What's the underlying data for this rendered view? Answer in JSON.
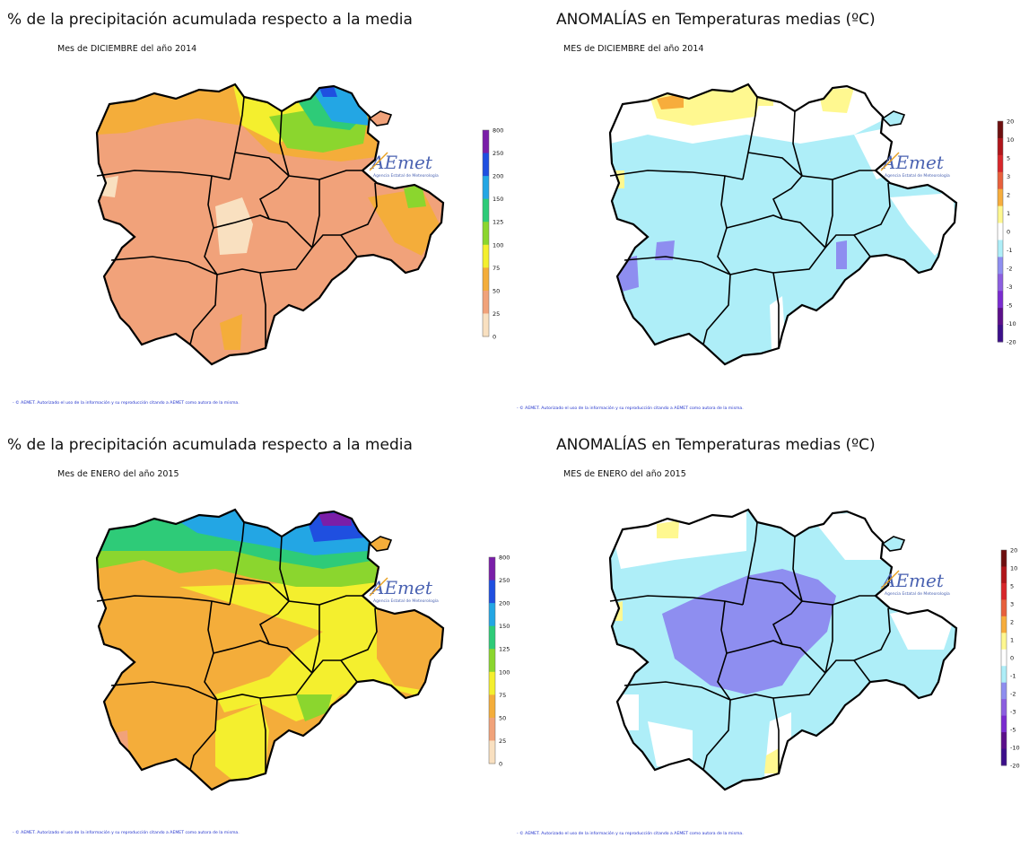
{
  "panels": [
    {
      "title": "% de la precipitación acumulada respecto a la media",
      "subtitle": "Mes de DICIEMBRE del año 2014",
      "footnote": "- © AEMET. Autorizado el uso de la información y su reproducción citando a AEMET como autora de la misma.",
      "logo": {
        "text": "AEmet",
        "caption": "Agencia Estatal de Meteorología"
      },
      "colorbar_ticks": [
        "800",
        "250",
        "200",
        "150",
        "125",
        "100",
        "75",
        "50",
        "25",
        "0"
      ]
    },
    {
      "title": "ANOMALÍAS en Temperaturas medias (ºC)",
      "subtitle": "MES de DICIEMBRE del año 2014",
      "footnote": "- © AEMET. Autorizado el uso de la información y su reproducción citando a AEMET como autora de la misma.",
      "logo": {
        "text": "AEmet",
        "caption": "Agencia Estatal de Meteorología"
      },
      "colorbar_ticks": [
        "20",
        "10",
        "5",
        "3",
        "2",
        "1",
        "0",
        "-1",
        "-2",
        "-3",
        "-5",
        "-10",
        "-20"
      ]
    },
    {
      "title": "% de la precipitación acumulada respecto a la media",
      "subtitle": "Mes de ENERO del año 2015",
      "footnote": "- © AEMET. Autorizado el uso de la información y su reproducción citando a AEMET como autora de la misma.",
      "logo": {
        "text": "AEmet",
        "caption": "Agencia Estatal de Meteorología"
      },
      "colorbar_ticks": [
        "800",
        "250",
        "200",
        "150",
        "125",
        "100",
        "75",
        "50",
        "25",
        "0"
      ]
    },
    {
      "title": "ANOMALÍAS en Temperaturas medias (ºC)",
      "subtitle": "MES de ENERO del año 2015",
      "footnote": "- © AEMET. Autorizado el uso de la información y su reproducción citando a AEMET como autora de la misma.",
      "logo": {
        "text": "AEmet",
        "caption": "Agencia Estatal de Meteorología"
      },
      "colorbar_ticks": [
        "20",
        "10",
        "5",
        "3",
        "2",
        "1",
        "0",
        "-1",
        "-2",
        "-3",
        "-5",
        "-10",
        "-20"
      ]
    }
  ],
  "colors": {
    "precip_scale": [
      "#f9e0c0",
      "#f1a27a",
      "#f4ad3a",
      "#f4ef2e",
      "#8bd62e",
      "#2ecb78",
      "#23a6e4",
      "#1f4fe0",
      "#7a1ea8"
    ],
    "temp_scale": [
      "#3c0f8a",
      "#5b0f8a",
      "#7a2bd0",
      "#8c5ee0",
      "#8e8ef0",
      "#aeeef8",
      "#ffffff",
      "#fff890",
      "#f7ad3c",
      "#e8603c",
      "#d8262a",
      "#b0151a",
      "#6e0f0f"
    ],
    "border": "#000000",
    "footnote": "#2233cc"
  }
}
